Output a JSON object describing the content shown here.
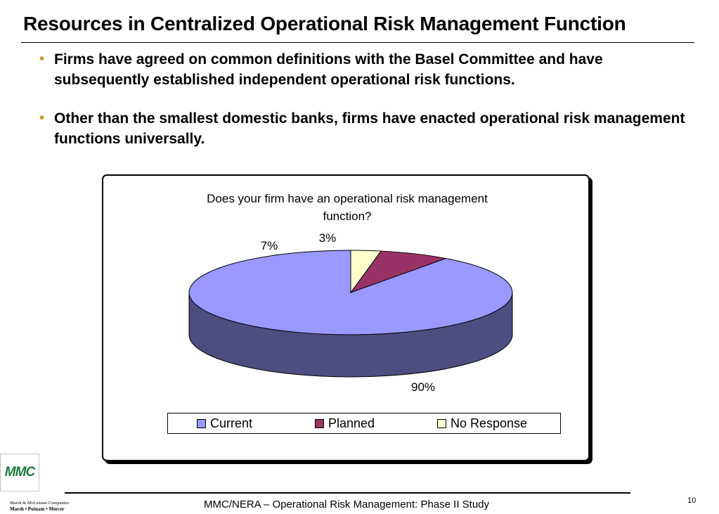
{
  "slide": {
    "title": "Resources in Centralized Operational Risk Management Function",
    "bullets": [
      "Firms have agreed on common definitions with the Basel Committee and have subsequently established independent operational risk functions.",
      "Other than the smallest domestic banks, firms have enacted operational risk management functions universally."
    ],
    "bullet_glyph": "•"
  },
  "chart_data": {
    "type": "pie",
    "title_line1": "Does your firm have an operational risk management",
    "title_line2": "function?",
    "categories": [
      "Current",
      "Planned",
      "No Response"
    ],
    "values": [
      90,
      7,
      3
    ],
    "labels": [
      "90%",
      "7%",
      "3%"
    ],
    "colors": [
      "#9999ff",
      "#993366",
      "#ffffcc"
    ],
    "side_colors": [
      "#4d4d80",
      "#4d1a33",
      "#808066"
    ],
    "legend_position": "bottom"
  },
  "footer": {
    "logo_text": "MMC",
    "company_line": "Marsh & McLennan Companies",
    "company_names": "Marsh • Putnam • Mercer",
    "study": "MMC/NERA – Operational Risk Management: Phase II Study",
    "page": "10"
  }
}
